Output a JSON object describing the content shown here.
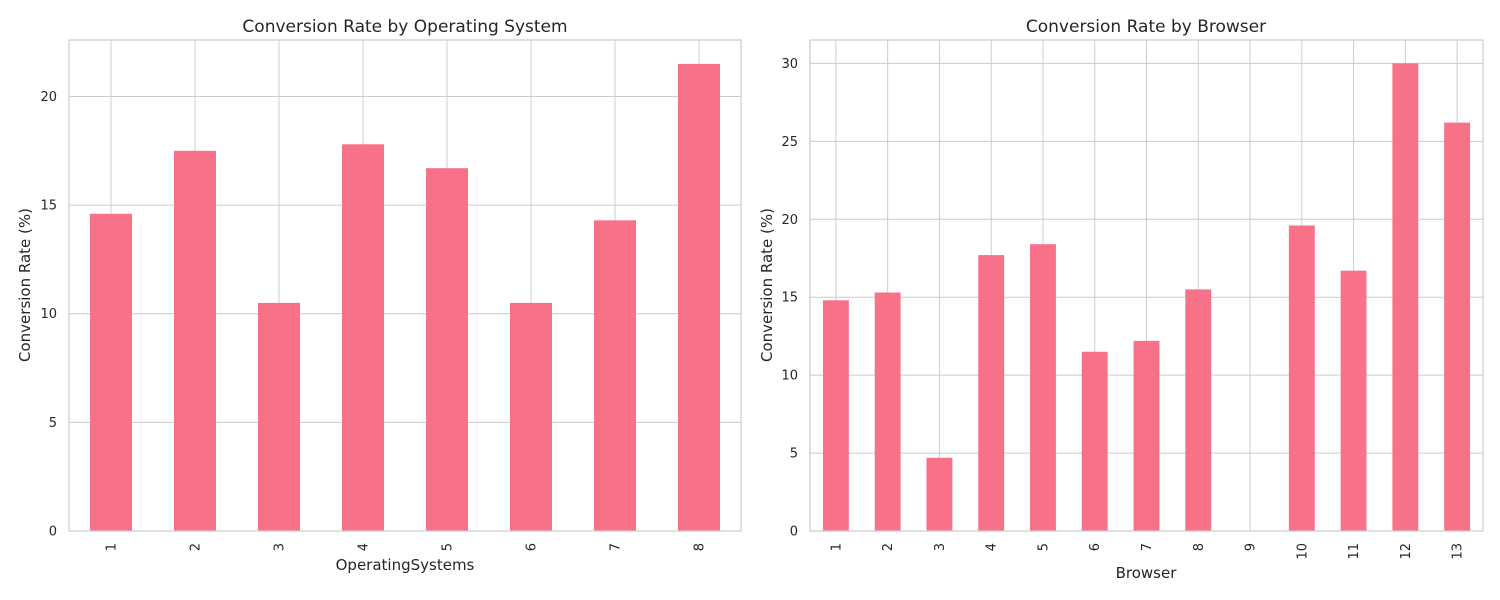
{
  "bar_color": "#f77189",
  "chart_data": [
    {
      "type": "bar",
      "title": "Conversion Rate by Operating System",
      "xlabel": "OperatingSystems",
      "ylabel": "Conversion Rate (%)",
      "categories": [
        "1",
        "2",
        "3",
        "4",
        "5",
        "6",
        "7",
        "8"
      ],
      "values": [
        14.6,
        17.5,
        10.5,
        17.8,
        16.7,
        10.5,
        14.3,
        21.5
      ],
      "ylim": [
        0,
        22.6
      ],
      "yticks": [
        0,
        5,
        10,
        15,
        20
      ],
      "grid": true,
      "xtick_rotation": "vertical"
    },
    {
      "type": "bar",
      "title": "Conversion Rate by Browser",
      "xlabel": "Browser",
      "ylabel": "Conversion Rate (%)",
      "categories": [
        "1",
        "2",
        "3",
        "4",
        "5",
        "6",
        "7",
        "8",
        "9",
        "10",
        "11",
        "12",
        "13"
      ],
      "values": [
        14.8,
        15.3,
        4.7,
        17.7,
        18.4,
        11.5,
        12.2,
        15.5,
        0,
        19.6,
        16.7,
        30.0,
        26.2
      ],
      "ylim": [
        0,
        31.5
      ],
      "yticks": [
        0,
        5,
        10,
        15,
        20,
        25,
        30
      ],
      "grid": true,
      "xtick_rotation": "vertical"
    }
  ]
}
